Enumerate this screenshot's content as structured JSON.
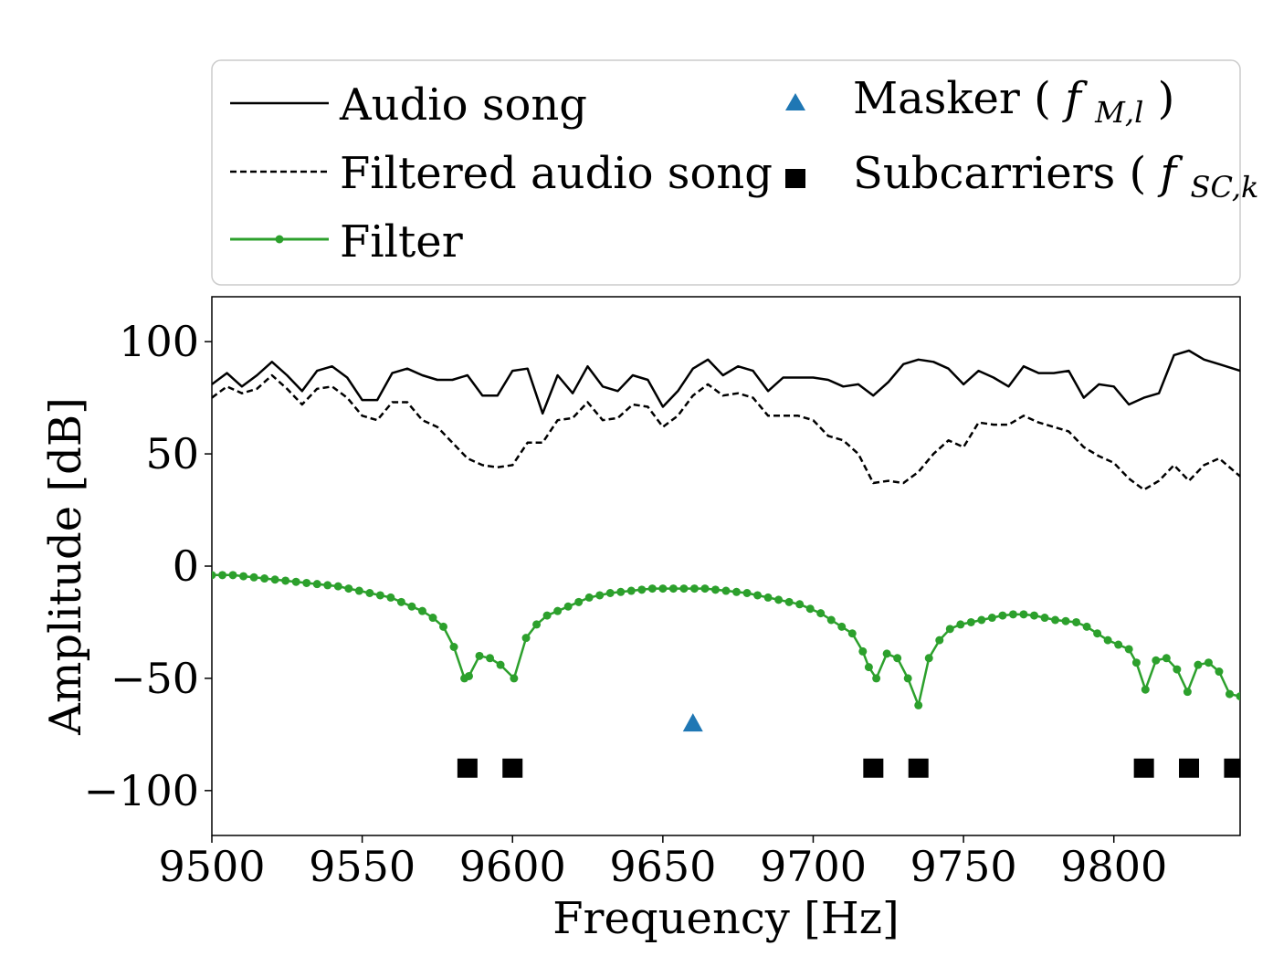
{
  "chart_data": {
    "type": "line",
    "xlabel": "Frequency [Hz]",
    "ylabel": "Amplitude [dB]",
    "xlim": [
      9500,
      9842
    ],
    "ylim": [
      -120,
      120
    ],
    "xticks": [
      9500,
      9550,
      9600,
      9650,
      9700,
      9750,
      9800
    ],
    "yticks": [
      100,
      50,
      0,
      -50,
      -100
    ],
    "ytick_labels": [
      "100",
      "50",
      "0",
      "−50",
      "−100"
    ],
    "grid": false,
    "legend_position": "top (outside, above axes)",
    "legend": [
      {
        "label": "Audio song",
        "style": "solid black line"
      },
      {
        "label": "Filtered audio song",
        "style": "dashed black line"
      },
      {
        "label": "Filter",
        "style": "green line with dot markers"
      },
      {
        "label": "Masker",
        "math_base": "f",
        "math_sub": "M,l",
        "style": "blue triangle"
      },
      {
        "label": "Subcarriers",
        "math_base": "f",
        "math_sub": "SC,k",
        "style": "black square"
      }
    ],
    "colors": {
      "audio": "#000000",
      "filtered": "#000000",
      "filter": "#2ca02c",
      "masker": "#1f77b4",
      "subcarriers": "#000000"
    },
    "series": [
      {
        "name": "Audio song",
        "x": [
          9500,
          9505,
          9510,
          9515,
          9520,
          9525,
          9530,
          9535,
          9540,
          9545,
          9550,
          9555,
          9560,
          9565,
          9570,
          9575,
          9580,
          9585,
          9590,
          9595,
          9600,
          9605,
          9610,
          9615,
          9620,
          9625,
          9630,
          9635,
          9640,
          9645,
          9650,
          9655,
          9660,
          9665,
          9670,
          9675,
          9680,
          9685,
          9690,
          9695,
          9700,
          9705,
          9710,
          9715,
          9720,
          9725,
          9730,
          9735,
          9740,
          9745,
          9750,
          9755,
          9760,
          9765,
          9770,
          9775,
          9780,
          9785,
          9790,
          9795,
          9800,
          9805,
          9810,
          9815,
          9820,
          9825,
          9830,
          9835,
          9842
        ],
        "values": [
          81,
          86,
          80,
          85,
          91,
          85,
          78,
          87,
          89,
          84,
          74,
          74,
          86,
          88,
          85,
          83,
          83,
          85,
          76,
          76,
          87,
          88,
          68,
          85,
          77,
          89,
          80,
          78,
          85,
          83,
          71,
          78,
          88,
          92,
          85,
          89,
          87,
          78,
          84,
          84,
          84,
          83,
          80,
          81,
          76,
          82,
          90,
          92,
          91,
          88,
          81,
          87,
          84,
          80,
          89,
          86,
          86,
          87,
          75,
          81,
          80,
          72,
          75,
          77,
          94,
          96,
          92,
          90,
          87
        ]
      },
      {
        "name": "Filtered audio song",
        "x": [
          9500,
          9505,
          9510,
          9515,
          9520,
          9525,
          9530,
          9535,
          9540,
          9545,
          9550,
          9555,
          9560,
          9565,
          9570,
          9575,
          9580,
          9585,
          9590,
          9595,
          9600,
          9605,
          9610,
          9615,
          9620,
          9625,
          9630,
          9635,
          9640,
          9645,
          9650,
          9655,
          9660,
          9665,
          9670,
          9675,
          9680,
          9685,
          9690,
          9695,
          9700,
          9705,
          9710,
          9715,
          9720,
          9725,
          9730,
          9735,
          9740,
          9745,
          9750,
          9755,
          9760,
          9765,
          9770,
          9775,
          9780,
          9785,
          9790,
          9795,
          9800,
          9805,
          9810,
          9815,
          9820,
          9825,
          9830,
          9835,
          9842
        ],
        "values": [
          75,
          80,
          77,
          79,
          85,
          79,
          72,
          79,
          80,
          75,
          67,
          65,
          73,
          73,
          65,
          62,
          55,
          48,
          45,
          44,
          45,
          55,
          55,
          65,
          66,
          73,
          65,
          66,
          72,
          71,
          62,
          67,
          76,
          81,
          76,
          77,
          75,
          67,
          67,
          67,
          65,
          58,
          56,
          50,
          37,
          38,
          37,
          42,
          50,
          56,
          53,
          64,
          63,
          63,
          67,
          64,
          62,
          60,
          53,
          49,
          46,
          39,
          34,
          38,
          45,
          38,
          45,
          48,
          40
        ]
      },
      {
        "name": "Filter",
        "x": [
          9500,
          9503.5,
          9507,
          9510.5,
          9514,
          9517.5,
          9521,
          9524.5,
          9528,
          9531.5,
          9535,
          9538.5,
          9542,
          9545.5,
          9549,
          9552.5,
          9556,
          9559.5,
          9563,
          9566.5,
          9570,
          9573.5,
          9577,
          9580.5,
          9584,
          9585.5,
          9589,
          9592.5,
          9596,
          9600.5,
          9604.5,
          9608,
          9611.5,
          9615,
          9618.5,
          9622,
          9625.5,
          9629,
          9632.5,
          9636,
          9639.5,
          9643,
          9646.5,
          9650,
          9653.5,
          9657,
          9660.5,
          9664,
          9667.5,
          9671,
          9674.5,
          9678,
          9681.5,
          9685,
          9688.5,
          9692,
          9695.5,
          9699,
          9702.5,
          9706,
          9709.5,
          9713,
          9716.5,
          9718.5,
          9721,
          9724.5,
          9728,
          9731.5,
          9735,
          9738.5,
          9742,
          9745.5,
          9749,
          9752.5,
          9756,
          9759.5,
          9763,
          9766.5,
          9770,
          9773.5,
          9777,
          9780.5,
          9784,
          9787.5,
          9791,
          9794.5,
          9798,
          9801.5,
          9805,
          9807.5,
          9810.5,
          9814,
          9817.5,
          9821,
          9824.5,
          9828,
          9831.5,
          9835,
          9838.5,
          9842
        ],
        "values": [
          -4,
          -4,
          -4,
          -4.5,
          -5,
          -5.5,
          -6,
          -6.5,
          -7,
          -7.5,
          -8,
          -8.5,
          -9,
          -10,
          -11,
          -12,
          -13,
          -14,
          -16,
          -18,
          -20,
          -23,
          -27,
          -36,
          -50,
          -49,
          -40,
          -41,
          -44,
          -50,
          -32,
          -26,
          -22,
          -20,
          -18,
          -16,
          -14,
          -13,
          -12,
          -11.5,
          -11,
          -10.5,
          -10,
          -10,
          -10,
          -10,
          -10,
          -10,
          -10.5,
          -11,
          -11.5,
          -12,
          -13,
          -14,
          -15,
          -16,
          -17,
          -19,
          -21,
          -24,
          -27,
          -30,
          -38,
          -45,
          -50,
          -39,
          -41,
          -50,
          -62,
          -41,
          -33,
          -28,
          -26,
          -25,
          -24,
          -23,
          -22,
          -21.5,
          -21.5,
          -22,
          -23,
          -24,
          -24.5,
          -25,
          -27,
          -30,
          -33,
          -35,
          -37,
          -43,
          -55,
          -42,
          -41,
          -46,
          -56,
          -44,
          -43,
          -47,
          -57,
          -58
        ]
      },
      {
        "name": "Masker",
        "marker": "triangle",
        "x": [
          9660
        ],
        "values": [
          -70
        ]
      },
      {
        "name": "Subcarriers",
        "marker": "square",
        "x": [
          9585,
          9600,
          9720,
          9735,
          9810,
          9825,
          9840
        ],
        "values": [
          -90,
          -90,
          -90,
          -90,
          -90,
          -90,
          -90
        ]
      }
    ]
  }
}
